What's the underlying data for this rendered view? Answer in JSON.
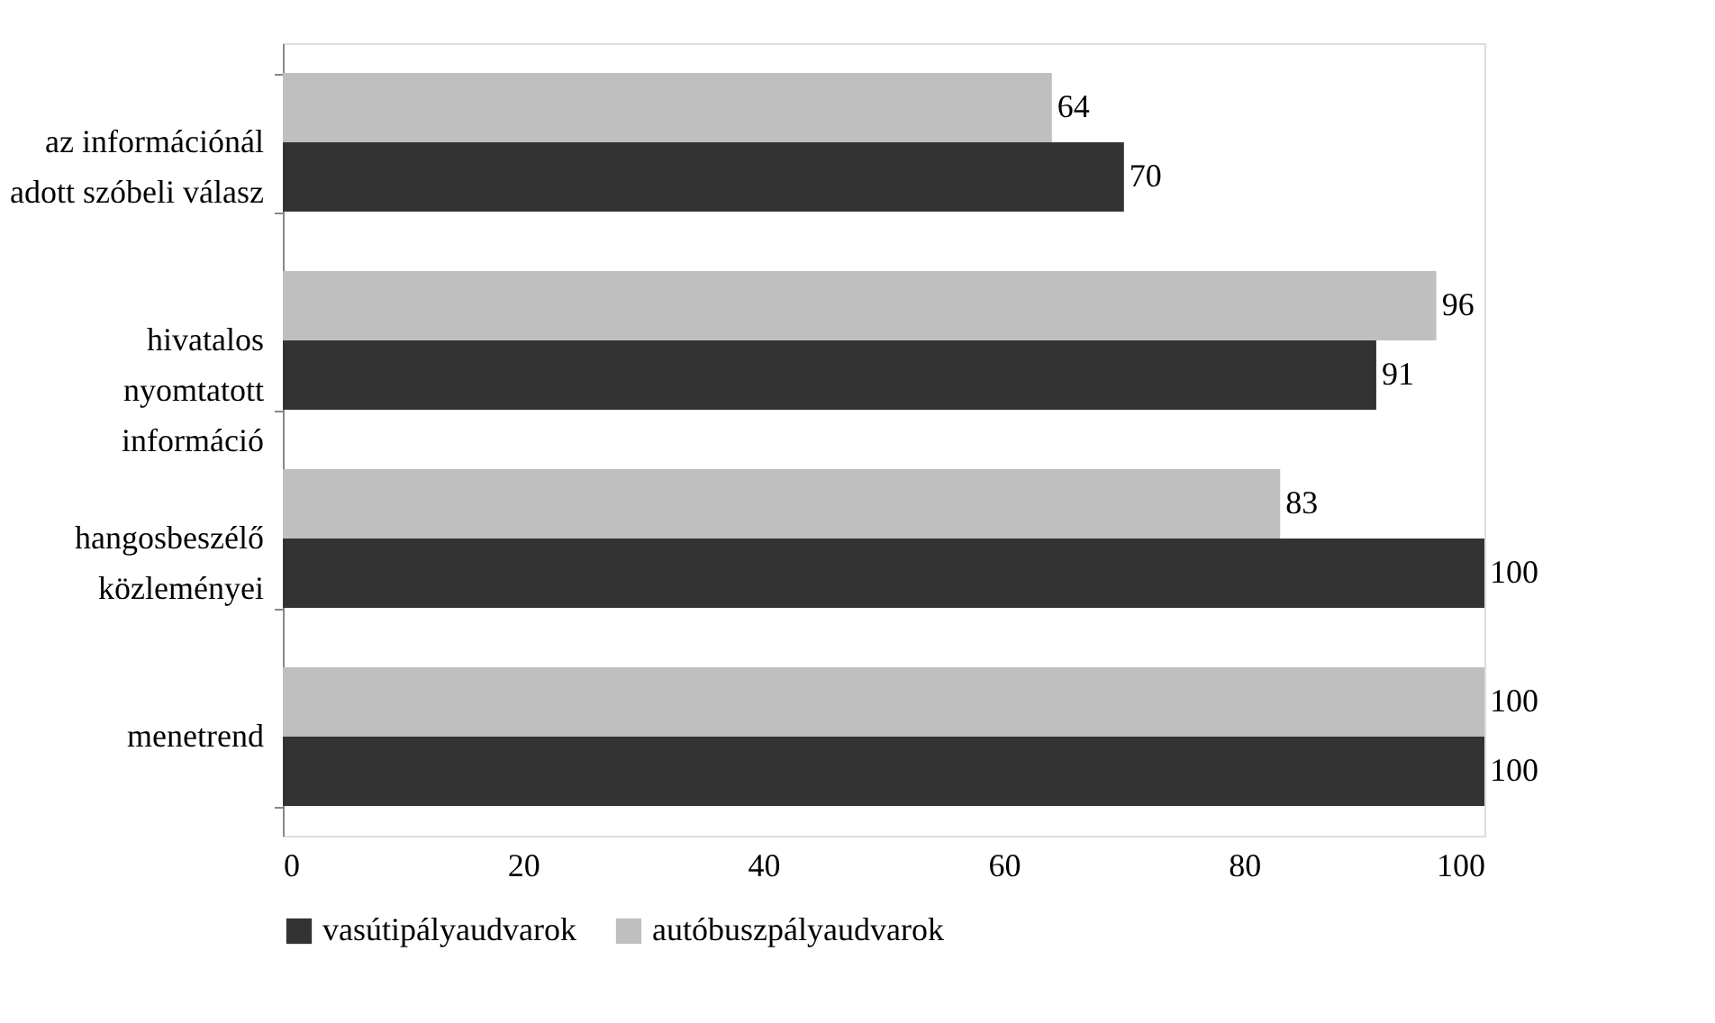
{
  "chart_data": {
    "type": "bar",
    "orientation": "horizontal",
    "categories": [
      "az információnál\nadott szóbeli válasz",
      "hivatalos\nnyomtatott\ninformáció",
      "hangosbeszélő\nközleményei",
      "menetrend"
    ],
    "series": [
      {
        "name": "vasútipályaudvarok",
        "color": "#333333",
        "values": [
          70,
          91,
          100,
          100
        ]
      },
      {
        "name": "autóbuszpályaudvarok",
        "color": "#bfbfbf",
        "values": [
          64,
          96,
          83,
          100
        ]
      }
    ],
    "xlim": [
      0,
      100
    ],
    "xticks": [
      0,
      20,
      40,
      60,
      80,
      100
    ],
    "grid": false,
    "legend": "bottom",
    "data_labels": true
  }
}
